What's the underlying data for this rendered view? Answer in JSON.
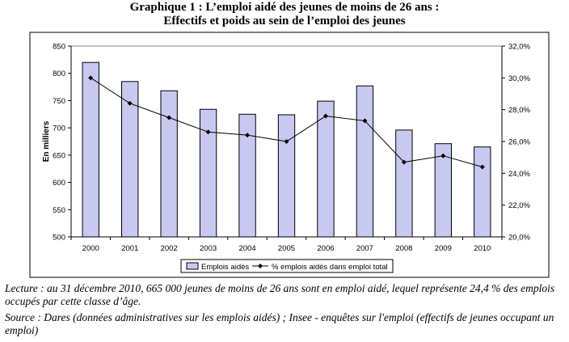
{
  "title_line1": "Graphique 1 : L’emploi aidé des jeunes de moins de 26 ans :",
  "title_line2": "Effectifs et poids au sein de l’emploi des jeunes",
  "notes": {
    "lecture": "Lecture : au 31 décembre 2010, 665 000 jeunes de moins de 26 ans sont en emploi aidé, lequel représente 24,4 % des emplois occupés par cette classe d’âge.",
    "source": "Source : Dares (données administratives sur les emplois aidés) ; Insee - enquêtes sur l'emploi (effectifs de jeunes occupant un emploi)"
  },
  "chart_data": {
    "type": "bar",
    "categories": [
      "2000",
      "2001",
      "2002",
      "2003",
      "2004",
      "2005",
      "2006",
      "2007",
      "2008",
      "2009",
      "2010"
    ],
    "series": [
      {
        "name": "Emplois aidés",
        "type": "bar",
        "axis": "left",
        "values": [
          820,
          785,
          768,
          734,
          725,
          724,
          749,
          777,
          696,
          671,
          665
        ]
      },
      {
        "name": "% emplois aidés dans emploi total",
        "type": "line",
        "axis": "right",
        "values": [
          30.0,
          28.4,
          27.5,
          26.6,
          26.4,
          26.0,
          27.6,
          27.3,
          24.7,
          25.1,
          24.4
        ]
      }
    ],
    "ylabel": "En milliers",
    "ylim": [
      500,
      850
    ],
    "yticks": [
      "500",
      "550",
      "600",
      "650",
      "700",
      "750",
      "800",
      "850"
    ],
    "y2lim": [
      20,
      32
    ],
    "y2ticks": [
      "20,0%",
      "22,0%",
      "24,0%",
      "26,0%",
      "28,0%",
      "30,0%",
      "32,0%"
    ],
    "legend_position": "bottom",
    "grid": false,
    "colors": {
      "bar_fill": "#c8c8f0",
      "bar_stroke": "#000000",
      "line": "#000000"
    }
  }
}
